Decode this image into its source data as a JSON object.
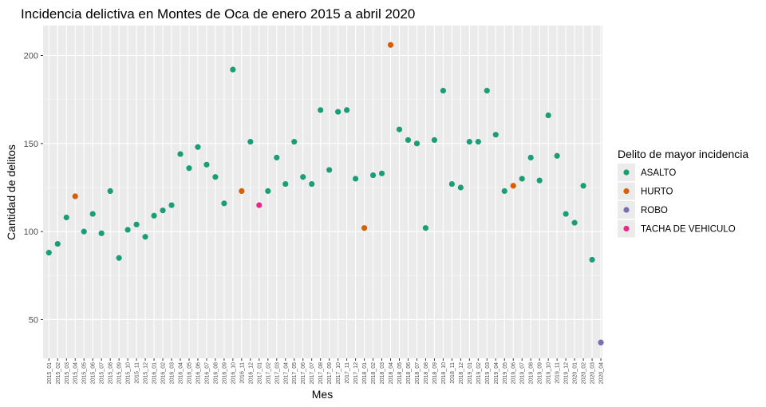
{
  "chart_data": {
    "type": "scatter",
    "title": "Incidencia delictiva en Montes de Oca de enero 2015 a abril 2020",
    "xlabel": "Mes",
    "ylabel": "Cantidad de delitos",
    "yticks": [
      50,
      100,
      150,
      200
    ],
    "ylim": [
      28,
      217
    ],
    "grid": true,
    "legend": {
      "title": "Delito de mayor incidencia",
      "placement": "right",
      "entries": [
        {
          "name": "ASALTO",
          "color": "#1b9e77"
        },
        {
          "name": "HURTO",
          "color": "#d95f02"
        },
        {
          "name": "ROBO",
          "color": "#7570b3"
        },
        {
          "name": "TACHA DE VEHICULO",
          "color": "#e7298a"
        }
      ]
    },
    "x": [
      "2015_01",
      "2015_02",
      "2015_03",
      "2015_04",
      "2015_05",
      "2015_06",
      "2015_07",
      "2015_08",
      "2015_09",
      "2015_10",
      "2015_11",
      "2015_12",
      "2016_01",
      "2016_02",
      "2016_03",
      "2016_04",
      "2016_05",
      "2016_06",
      "2016_07",
      "2016_08",
      "2016_09",
      "2016_10",
      "2016_11",
      "2016_12",
      "2017_01",
      "2017_02",
      "2017_03",
      "2017_04",
      "2017_05",
      "2017_06",
      "2017_07",
      "2017_08",
      "2017_09",
      "2017_10",
      "2017_11",
      "2017_12",
      "2018_01",
      "2018_02",
      "2018_03",
      "2018_04",
      "2018_05",
      "2018_06",
      "2018_07",
      "2018_08",
      "2018_09",
      "2018_10",
      "2018_11",
      "2018_12",
      "2019_01",
      "2019_02",
      "2019_03",
      "2019_04",
      "2019_05",
      "2019_06",
      "2019_07",
      "2019_08",
      "2019_09",
      "2019_10",
      "2019_11",
      "2019_12",
      "2020_01",
      "2020_02",
      "2020_03",
      "2020_04"
    ],
    "y": [
      88,
      93,
      108,
      120,
      100,
      110,
      99,
      123,
      85,
      101,
      104,
      97,
      109,
      112,
      115,
      144,
      136,
      148,
      138,
      131,
      116,
      192,
      123,
      151,
      115,
      123,
      142,
      127,
      151,
      131,
      127,
      169,
      135,
      168,
      169,
      130,
      102,
      132,
      133,
      206,
      158,
      152,
      150,
      102,
      152,
      180,
      127,
      125,
      151,
      151,
      180,
      155,
      123,
      126,
      130,
      142,
      129,
      166,
      143,
      110,
      105,
      126,
      84,
      37
    ],
    "category": [
      "ASALTO",
      "ASALTO",
      "ASALTO",
      "HURTO",
      "ASALTO",
      "ASALTO",
      "ASALTO",
      "ASALTO",
      "ASALTO",
      "ASALTO",
      "ASALTO",
      "ASALTO",
      "ASALTO",
      "ASALTO",
      "ASALTO",
      "ASALTO",
      "ASALTO",
      "ASALTO",
      "ASALTO",
      "ASALTO",
      "ASALTO",
      "ASALTO",
      "HURTO",
      "ASALTO",
      "TACHA DE VEHICULO",
      "ASALTO",
      "ASALTO",
      "ASALTO",
      "ASALTO",
      "ASALTO",
      "ASALTO",
      "ASALTO",
      "ASALTO",
      "ASALTO",
      "ASALTO",
      "ASALTO",
      "HURTO",
      "ASALTO",
      "ASALTO",
      "HURTO",
      "ASALTO",
      "ASALTO",
      "ASALTO",
      "ASALTO",
      "ASALTO",
      "ASALTO",
      "ASALTO",
      "ASALTO",
      "ASALTO",
      "ASALTO",
      "ASALTO",
      "ASALTO",
      "ASALTO",
      "HURTO",
      "ASALTO",
      "ASALTO",
      "ASALTO",
      "ASALTO",
      "ASALTO",
      "ASALTO",
      "ASALTO",
      "ASALTO",
      "ASALTO",
      "ROBO"
    ]
  }
}
